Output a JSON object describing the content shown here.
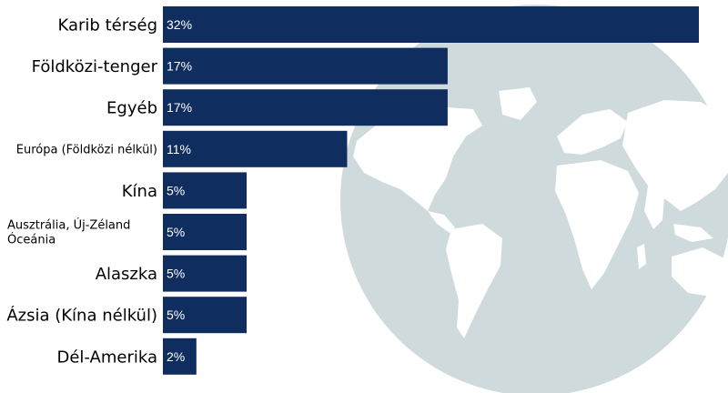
{
  "chart_data": {
    "type": "bar",
    "orientation": "horizontal",
    "categories": [
      "Karib térség",
      "Földközi-tenger",
      "Egyéb",
      "Európa (Földközi nélkül)",
      "Kína",
      "Ausztrália, Új-Zéland Óceánia",
      "Alaszka",
      "Ázsia (Kína nélkül)",
      "Dél-Amerika"
    ],
    "category_lines": [
      [
        "Karib térség"
      ],
      [
        "Földközi-tenger"
      ],
      [
        "Egyéb"
      ],
      [
        "Európa (Földközi nélkül)"
      ],
      [
        "Kína"
      ],
      [
        "Ausztrália, Új-Zéland",
        "Óceánia"
      ],
      [
        "Alaszka"
      ],
      [
        "Ázsia (Kína nélkül)"
      ],
      [
        "Dél-Amerika"
      ]
    ],
    "values": [
      32,
      17,
      17,
      11,
      5,
      5,
      5,
      5,
      2
    ],
    "data_labels": [
      "32%",
      "17%",
      "17%",
      "11%",
      "5%",
      "5%",
      "5%",
      "5%",
      "2%"
    ],
    "xlim": [
      0,
      32
    ],
    "grid": false,
    "legend": "none",
    "background_image": "world-globe",
    "colors": {
      "bar": "#0f2d5e",
      "label_text": "#ffffff",
      "category_text": "#000000",
      "globe_fill": "#cfdadc",
      "land_fill": "#ffffff"
    }
  }
}
